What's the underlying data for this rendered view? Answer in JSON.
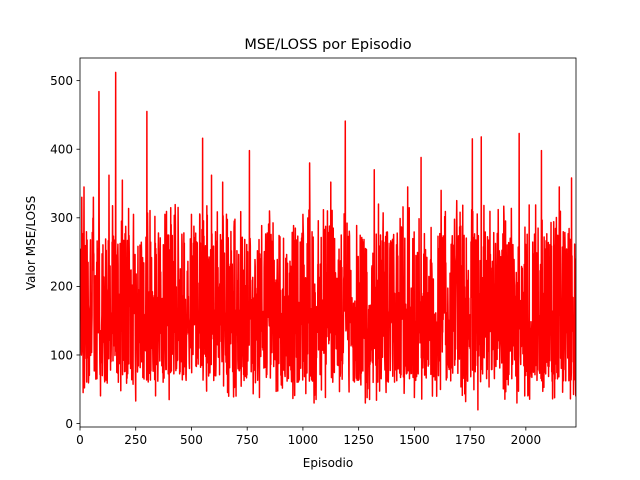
{
  "chart_data": {
    "type": "line",
    "title": "MSE/LOSS por Episodio",
    "xlabel": "Episodio",
    "ylabel": "Valor MSE/LOSS",
    "xlim": [
      0,
      2225
    ],
    "ylim": [
      -5,
      533
    ],
    "xticks": [
      0,
      250,
      500,
      750,
      1000,
      1250,
      1500,
      1750,
      2000
    ],
    "xtick_labels": [
      "0",
      "250",
      "500",
      "750",
      "1000",
      "1250",
      "1500",
      "1750",
      "2000"
    ],
    "yticks": [
      0,
      100,
      200,
      300,
      400,
      500
    ],
    "ytick_labels": [
      "0",
      "100",
      "200",
      "300",
      "400",
      "500"
    ],
    "grid": false,
    "legend": "none",
    "series": [
      {
        "color": "#ff0000",
        "n_points": 2225,
        "mean": 150,
        "typical_low": 60,
        "typical_high": 260,
        "min": 20,
        "max": 512,
        "peaks": [
          {
            "x": 8,
            "y": 330
          },
          {
            "x": 18,
            "y": 345
          },
          {
            "x": 60,
            "y": 330
          },
          {
            "x": 85,
            "y": 484
          },
          {
            "x": 130,
            "y": 362
          },
          {
            "x": 160,
            "y": 512
          },
          {
            "x": 190,
            "y": 355
          },
          {
            "x": 240,
            "y": 305
          },
          {
            "x": 300,
            "y": 455
          },
          {
            "x": 340,
            "y": 255
          },
          {
            "x": 440,
            "y": 315
          },
          {
            "x": 500,
            "y": 305
          },
          {
            "x": 550,
            "y": 416
          },
          {
            "x": 590,
            "y": 362
          },
          {
            "x": 640,
            "y": 352
          },
          {
            "x": 760,
            "y": 398
          },
          {
            "x": 850,
            "y": 310
          },
          {
            "x": 1000,
            "y": 305
          },
          {
            "x": 1030,
            "y": 380
          },
          {
            "x": 1125,
            "y": 352
          },
          {
            "x": 1190,
            "y": 441
          },
          {
            "x": 1320,
            "y": 370
          },
          {
            "x": 1470,
            "y": 345
          },
          {
            "x": 1530,
            "y": 388
          },
          {
            "x": 1620,
            "y": 340
          },
          {
            "x": 1690,
            "y": 325
          },
          {
            "x": 1760,
            "y": 415
          },
          {
            "x": 1800,
            "y": 418
          },
          {
            "x": 1970,
            "y": 423
          },
          {
            "x": 2070,
            "y": 398
          },
          {
            "x": 2150,
            "y": 345
          },
          {
            "x": 2205,
            "y": 358
          }
        ],
        "troughs": [
          {
            "x": 20,
            "y": 52
          },
          {
            "x": 250,
            "y": 33
          },
          {
            "x": 400,
            "y": 35
          },
          {
            "x": 700,
            "y": 40
          },
          {
            "x": 805,
            "y": 38
          },
          {
            "x": 1050,
            "y": 30
          },
          {
            "x": 1280,
            "y": 30
          },
          {
            "x": 1330,
            "y": 34
          },
          {
            "x": 1500,
            "y": 38
          },
          {
            "x": 1730,
            "y": 32
          },
          {
            "x": 1785,
            "y": 20
          },
          {
            "x": 1960,
            "y": 30
          },
          {
            "x": 2120,
            "y": 36
          },
          {
            "x": 2200,
            "y": 36
          }
        ]
      }
    ]
  }
}
